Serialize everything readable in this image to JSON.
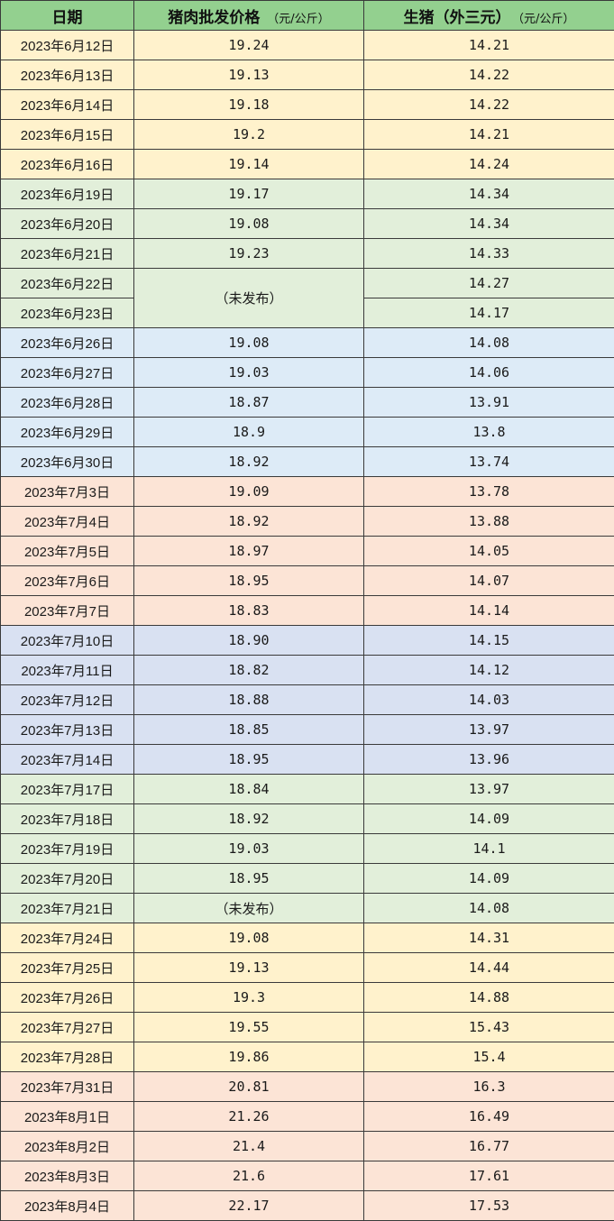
{
  "headers": {
    "date": "日期",
    "pork": "猪肉批发价格",
    "pork_unit": "（元/公斤）",
    "hog": "生猪（外三元）",
    "hog_unit": "（元/公斤）"
  },
  "colors": {
    "header": "#93d08f",
    "yellow": "#fff2cc",
    "green": "#e2efda",
    "blue": "#ddebf7",
    "peach": "#fce4d6",
    "lavender": "#d9e1f2"
  },
  "rows": [
    {
      "date": "2023年6月12日",
      "pork": "19.24",
      "hog": "14.21",
      "group": "yellow"
    },
    {
      "date": "2023年6月13日",
      "pork": "19.13",
      "hog": "14.22",
      "group": "yellow"
    },
    {
      "date": "2023年6月14日",
      "pork": "19.18",
      "hog": "14.22",
      "group": "yellow"
    },
    {
      "date": "2023年6月15日",
      "pork": "19.2",
      "hog": "14.21",
      "group": "yellow"
    },
    {
      "date": "2023年6月16日",
      "pork": "19.14",
      "hog": "14.24",
      "group": "yellow"
    },
    {
      "date": "2023年6月19日",
      "pork": "19.17",
      "hog": "14.34",
      "group": "green"
    },
    {
      "date": "2023年6月20日",
      "pork": "19.08",
      "hog": "14.34",
      "group": "green"
    },
    {
      "date": "2023年6月21日",
      "pork": "19.23",
      "hog": "14.33",
      "group": "green"
    },
    {
      "date": "2023年6月22日",
      "pork": "（未发布）",
      "pork_rowspan": 2,
      "hog": "14.27",
      "group": "green"
    },
    {
      "date": "2023年6月23日",
      "pork": null,
      "hog": "14.17",
      "group": "green"
    },
    {
      "date": "2023年6月26日",
      "pork": "19.08",
      "hog": "14.08",
      "group": "blue"
    },
    {
      "date": "2023年6月27日",
      "pork": "19.03",
      "hog": "14.06",
      "group": "blue"
    },
    {
      "date": "2023年6月28日",
      "pork": "18.87",
      "hog": "13.91",
      "group": "blue"
    },
    {
      "date": "2023年6月29日",
      "pork": "18.9",
      "hog": "13.8",
      "group": "blue"
    },
    {
      "date": "2023年6月30日",
      "pork": "18.92",
      "hog": "13.74",
      "group": "blue"
    },
    {
      "date": "2023年7月3日",
      "pork": "19.09",
      "hog": "13.78",
      "group": "peach"
    },
    {
      "date": "2023年7月4日",
      "pork": "18.92",
      "hog": "13.88",
      "group": "peach"
    },
    {
      "date": "2023年7月5日",
      "pork": "18.97",
      "hog": "14.05",
      "group": "peach"
    },
    {
      "date": "2023年7月6日",
      "pork": "18.95",
      "hog": "14.07",
      "group": "peach"
    },
    {
      "date": "2023年7月7日",
      "pork": "18.83",
      "hog": "14.14",
      "group": "peach"
    },
    {
      "date": "2023年7月10日",
      "pork": "18.90",
      "hog": "14.15",
      "group": "lavender"
    },
    {
      "date": "2023年7月11日",
      "pork": "18.82",
      "hog": "14.12",
      "group": "lavender"
    },
    {
      "date": "2023年7月12日",
      "pork": "18.88",
      "hog": "14.03",
      "group": "lavender"
    },
    {
      "date": "2023年7月13日",
      "pork": "18.85",
      "hog": "13.97",
      "group": "lavender"
    },
    {
      "date": "2023年7月14日",
      "pork": "18.95",
      "hog": "13.96",
      "group": "lavender"
    },
    {
      "date": "2023年7月17日",
      "pork": "18.84",
      "hog": "13.97",
      "group": "green"
    },
    {
      "date": "2023年7月18日",
      "pork": "18.92",
      "hog": "14.09",
      "group": "green"
    },
    {
      "date": "2023年7月19日",
      "pork": "19.03",
      "hog": "14.1",
      "group": "green"
    },
    {
      "date": "2023年7月20日",
      "pork": "18.95",
      "hog": "14.09",
      "group": "green"
    },
    {
      "date": "2023年7月21日",
      "pork": "（未发布）",
      "hog": "14.08",
      "group": "green"
    },
    {
      "date": "2023年7月24日",
      "pork": "19.08",
      "hog": "14.31",
      "group": "yellow"
    },
    {
      "date": "2023年7月25日",
      "pork": "19.13",
      "hog": "14.44",
      "group": "yellow"
    },
    {
      "date": "2023年7月26日",
      "pork": "19.3",
      "hog": "14.88",
      "group": "yellow"
    },
    {
      "date": "2023年7月27日",
      "pork": "19.55",
      "hog": "15.43",
      "group": "yellow"
    },
    {
      "date": "2023年7月28日",
      "pork": "19.86",
      "hog": "15.4",
      "group": "yellow"
    },
    {
      "date": "2023年7月31日",
      "pork": "20.81",
      "hog": "16.3",
      "group": "peach"
    },
    {
      "date": "2023年8月1日",
      "pork": "21.26",
      "hog": "16.49",
      "group": "peach"
    },
    {
      "date": "2023年8月2日",
      "pork": "21.4",
      "hog": "16.77",
      "group": "peach"
    },
    {
      "date": "2023年8月3日",
      "pork": "21.6",
      "hog": "17.61",
      "group": "peach"
    },
    {
      "date": "2023年8月4日",
      "pork": "22.17",
      "hog": "17.53",
      "group": "peach"
    }
  ]
}
